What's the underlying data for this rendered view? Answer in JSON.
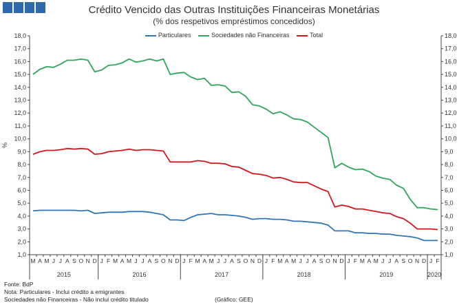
{
  "header": {
    "title": "Crédito Vencido das Outras Instituições Financeiras Monetárias",
    "subtitle": "(% dos respetivos empréstimos concedidos)"
  },
  "logo": {
    "blocks": 4,
    "color": "#2f68ad"
  },
  "notes": {
    "source": "Fonte: BdP",
    "note1": "Nota: Particulares - Inclui crédito a emigrantes",
    "note2": "Sociedades não Financeiras - Não inclui crédito titulado",
    "credit": "(Gráfico: GEE)"
  },
  "chart_data": {
    "type": "line",
    "title": "Crédito Vencido das Outras Instituições Financeiras Monetárias",
    "subtitle": "(% dos respetivos empréstimos concedidos)",
    "ylabel": "%",
    "ylim": [
      1,
      18
    ],
    "yticks": [
      "1,0",
      "2,0",
      "3,0",
      "4,0",
      "5,0",
      "6,0",
      "7,0",
      "8,0",
      "9,0",
      "10,0",
      "11,0",
      "12,0",
      "13,0",
      "14,0",
      "15,0",
      "16,0",
      "17,0",
      "18,0"
    ],
    "grid": false,
    "legend_position": "top",
    "x_month_labels": [
      "M",
      "A",
      "M",
      "J",
      "J",
      "A",
      "S",
      "O",
      "N",
      "D",
      "J",
      "F",
      "M",
      "A",
      "M",
      "J",
      "J",
      "A",
      "S",
      "O",
      "N",
      "D",
      "J",
      "F",
      "M",
      "A",
      "M",
      "J",
      "J",
      "A",
      "S",
      "O",
      "N",
      "D",
      "J",
      "F",
      "M",
      "A",
      "M",
      "J",
      "J",
      "A",
      "S",
      "O",
      "N",
      "D",
      "J",
      "F",
      "M",
      "A",
      "M",
      "J",
      "J",
      "A",
      "S",
      "O",
      "N",
      "D",
      "J",
      "F"
    ],
    "years": [
      {
        "label": "2015",
        "start": 0,
        "end": 9
      },
      {
        "label": "2016",
        "start": 10,
        "end": 21
      },
      {
        "label": "2017",
        "start": 22,
        "end": 33
      },
      {
        "label": "2018",
        "start": 34,
        "end": 45
      },
      {
        "label": "2019",
        "start": 46,
        "end": 57
      },
      {
        "label": "2020",
        "start": 58,
        "end": 59
      }
    ],
    "series": [
      {
        "name": "Particulares",
        "color": "#2e75b6",
        "values": [
          4.4,
          4.45,
          4.45,
          4.45,
          4.45,
          4.45,
          4.45,
          4.4,
          4.45,
          4.2,
          4.25,
          4.3,
          4.3,
          4.3,
          4.35,
          4.35,
          4.35,
          4.3,
          4.2,
          4.1,
          3.7,
          3.7,
          3.65,
          3.9,
          4.1,
          4.15,
          4.2,
          4.1,
          4.1,
          4.05,
          4.0,
          3.9,
          3.75,
          3.8,
          3.8,
          3.75,
          3.75,
          3.7,
          3.6,
          3.6,
          3.55,
          3.5,
          3.45,
          3.3,
          2.85,
          2.85,
          2.85,
          2.7,
          2.7,
          2.65,
          2.65,
          2.6,
          2.6,
          2.5,
          2.45,
          2.4,
          2.3,
          2.1,
          2.1,
          2.1
        ]
      },
      {
        "name": "Sociedades não Financeiras",
        "color": "#2ea55a",
        "values": [
          15.0,
          15.4,
          15.6,
          15.55,
          15.8,
          16.1,
          16.1,
          16.2,
          16.1,
          15.2,
          15.35,
          15.7,
          15.75,
          15.9,
          16.2,
          15.95,
          16.05,
          16.2,
          16.05,
          16.2,
          15.0,
          15.1,
          15.15,
          14.8,
          14.6,
          14.7,
          14.15,
          14.2,
          14.1,
          13.6,
          13.65,
          13.3,
          12.65,
          12.55,
          12.3,
          11.95,
          12.1,
          11.85,
          11.55,
          11.5,
          11.3,
          10.9,
          10.5,
          10.1,
          7.75,
          8.1,
          7.8,
          7.6,
          7.65,
          7.45,
          7.1,
          6.95,
          6.85,
          6.4,
          6.15,
          5.3,
          4.65,
          4.65,
          4.55,
          4.5
        ]
      },
      {
        "name": "Total",
        "color": "#d0171b",
        "values": [
          8.8,
          9.0,
          9.1,
          9.1,
          9.15,
          9.25,
          9.2,
          9.25,
          9.2,
          8.8,
          8.85,
          9.0,
          9.05,
          9.1,
          9.2,
          9.1,
          9.15,
          9.15,
          9.1,
          9.05,
          8.2,
          8.2,
          8.2,
          8.2,
          8.3,
          8.25,
          8.1,
          8.1,
          8.05,
          7.85,
          7.8,
          7.55,
          7.3,
          7.25,
          7.15,
          6.95,
          7.0,
          6.85,
          6.65,
          6.6,
          6.6,
          6.35,
          6.1,
          5.9,
          4.7,
          4.85,
          4.75,
          4.55,
          4.55,
          4.45,
          4.35,
          4.25,
          4.2,
          3.95,
          3.8,
          3.45,
          3.0,
          3.0,
          3.0,
          2.95
        ]
      }
    ]
  }
}
